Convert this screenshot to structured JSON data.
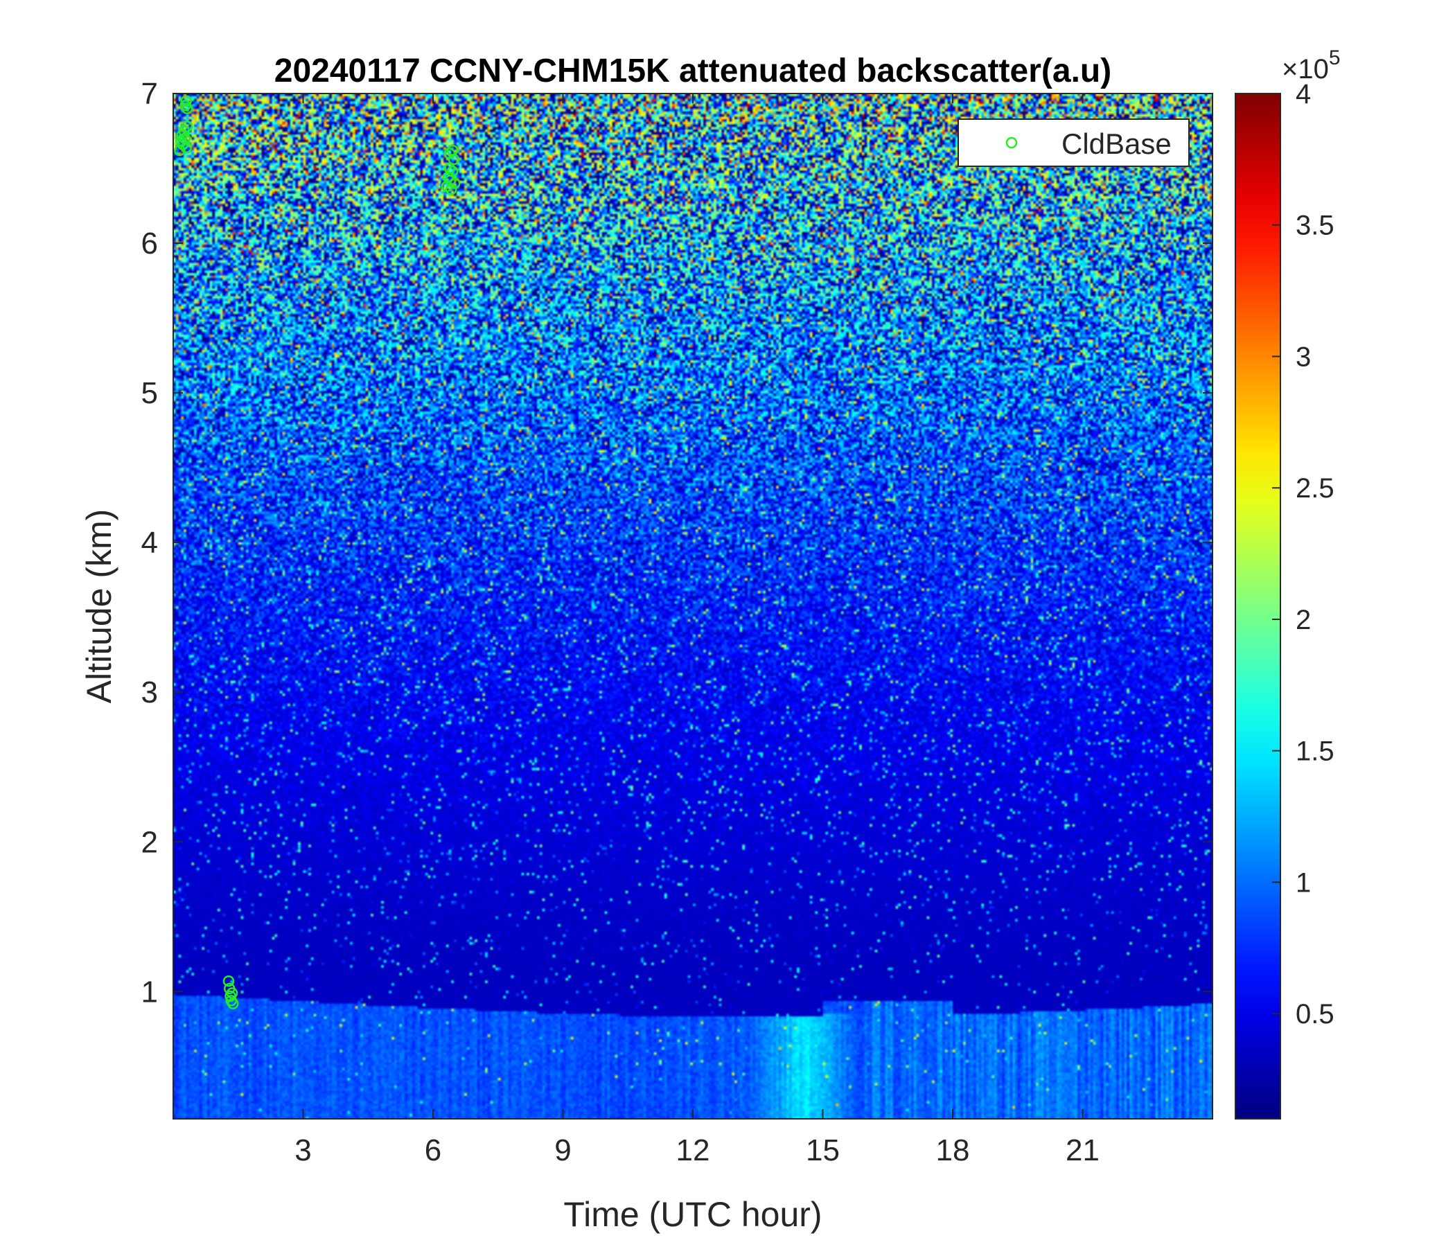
{
  "chart_data": {
    "type": "heatmap",
    "title": "20240117 CCNY-CHM15K attenuated backscatter(a.u)",
    "xlabel": "Time (UTC hour)",
    "ylabel": "Altitude (km)",
    "xlim": [
      0,
      24
    ],
    "ylim": [
      0.15,
      7
    ],
    "xticks": [
      "3",
      "6",
      "9",
      "12",
      "15",
      "18",
      "21"
    ],
    "yticks": [
      "1",
      "2",
      "3",
      "4",
      "5",
      "6",
      "7"
    ],
    "colorbar": {
      "colormap": "jet",
      "clim": [
        0.1,
        4
      ],
      "ticks": [
        "0.5",
        "1",
        "1.5",
        "2",
        "2.5",
        "3",
        "3.5",
        "4"
      ],
      "multiplier_base": "×10",
      "multiplier_exp": "5"
    },
    "legend": {
      "location": "top-right",
      "entries": [
        "CldBase"
      ]
    },
    "series": [
      {
        "name": "CldBase",
        "marker": "circle",
        "color": "#22ee22",
        "points": [
          [
            0.15,
            6.62
          ],
          [
            0.18,
            6.68
          ],
          [
            0.2,
            6.72
          ],
          [
            0.22,
            6.66
          ],
          [
            0.25,
            6.75
          ],
          [
            0.27,
            6.7
          ],
          [
            0.3,
            6.64
          ],
          [
            0.32,
            6.78
          ],
          [
            0.28,
            6.92
          ],
          [
            0.3,
            6.95
          ],
          [
            0.32,
            6.9
          ],
          [
            1.28,
            1.07
          ],
          [
            1.3,
            1.02
          ],
          [
            1.32,
            0.97
          ],
          [
            1.34,
            0.94
          ],
          [
            1.36,
            0.99
          ],
          [
            1.38,
            0.92
          ],
          [
            6.32,
            6.38
          ],
          [
            6.35,
            6.44
          ],
          [
            6.38,
            6.5
          ],
          [
            6.4,
            6.42
          ],
          [
            6.42,
            6.36
          ],
          [
            6.45,
            6.48
          ],
          [
            6.48,
            6.56
          ],
          [
            6.5,
            6.4
          ],
          [
            6.38,
            6.6
          ],
          [
            6.45,
            6.62
          ]
        ]
      }
    ]
  }
}
